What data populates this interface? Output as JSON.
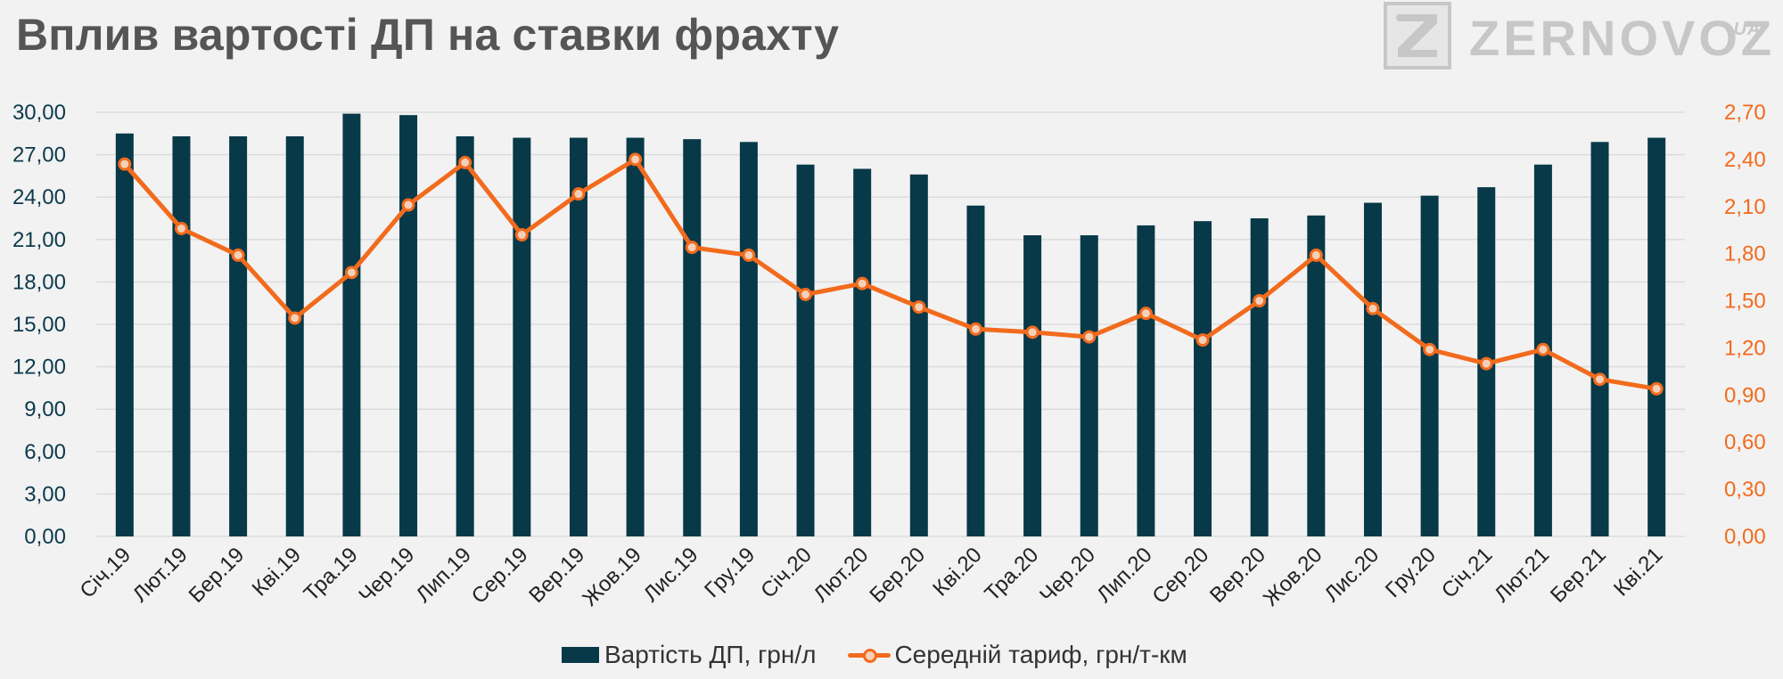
{
  "header": {
    "title": "Вплив вартості ДП на ставки фрахту"
  },
  "logo": {
    "text": "ZERNOVOZ",
    "suffix": ".UA",
    "icon": "z-logo-icon"
  },
  "colors": {
    "bar": "#083948",
    "line": "#f26b1d",
    "marker_fill": "#f5d0b8",
    "left_axis": "#0c3a4d",
    "right_axis": "#f26b1d",
    "grid": "#dcdcdc"
  },
  "chart_data": {
    "type": "bar",
    "title": "Вплив вартості ДП на ставки фрахту",
    "categories": [
      "Січ.19",
      "Лют.19",
      "Бер.19",
      "Кві.19",
      "Тра.19",
      "Чер.19",
      "Лип.19",
      "Сер.19",
      "Вер.19",
      "Жов.19",
      "Лис.19",
      "Гру.19",
      "Січ.20",
      "Лют.20",
      "Бер.20",
      "Кві.20",
      "Тра.20",
      "Чер.20",
      "Лип.20",
      "Сер.20",
      "Вер.20",
      "Жов.20",
      "Лис.20",
      "Гру.20",
      "Січ.21",
      "Лют.21",
      "Бер.21",
      "Кві.21"
    ],
    "series": [
      {
        "name": "Вартість ДП, грн/л",
        "type": "bar",
        "axis": "left",
        "values": [
          28.5,
          28.3,
          28.3,
          28.3,
          29.9,
          29.8,
          28.3,
          28.2,
          28.2,
          28.2,
          28.1,
          27.9,
          26.3,
          26.0,
          25.6,
          23.4,
          21.3,
          21.3,
          22.0,
          22.3,
          22.5,
          22.7,
          23.6,
          24.1,
          24.7,
          26.3,
          27.9,
          28.2
        ]
      },
      {
        "name": "Середній тариф, грн/т-км",
        "type": "line",
        "axis": "right",
        "values": [
          2.37,
          1.96,
          1.79,
          1.39,
          1.68,
          2.11,
          2.38,
          1.92,
          2.18,
          2.4,
          1.84,
          1.79,
          1.54,
          1.61,
          1.46,
          1.32,
          1.3,
          1.27,
          1.42,
          1.25,
          1.5,
          1.79,
          1.45,
          1.19,
          1.1,
          1.19,
          1.0,
          0.94
        ]
      }
    ],
    "y_left": {
      "lim": [
        0,
        30
      ],
      "ticks": [
        "0,00",
        "3,00",
        "6,00",
        "9,00",
        "12,00",
        "15,00",
        "18,00",
        "21,00",
        "24,00",
        "27,00",
        "30,00"
      ]
    },
    "y_right": {
      "lim": [
        0,
        2.7
      ],
      "ticks": [
        "0,00",
        "0,30",
        "0,60",
        "0,90",
        "1,20",
        "1,50",
        "1,80",
        "2,10",
        "2,40",
        "2,70"
      ]
    },
    "grid": true,
    "legend": "bottom"
  },
  "legend": {
    "items": [
      {
        "label": "Вартість ДП, грн/л",
        "swatch": "bar"
      },
      {
        "label": "Середній тариф, грн/т-км",
        "swatch": "line"
      }
    ]
  }
}
